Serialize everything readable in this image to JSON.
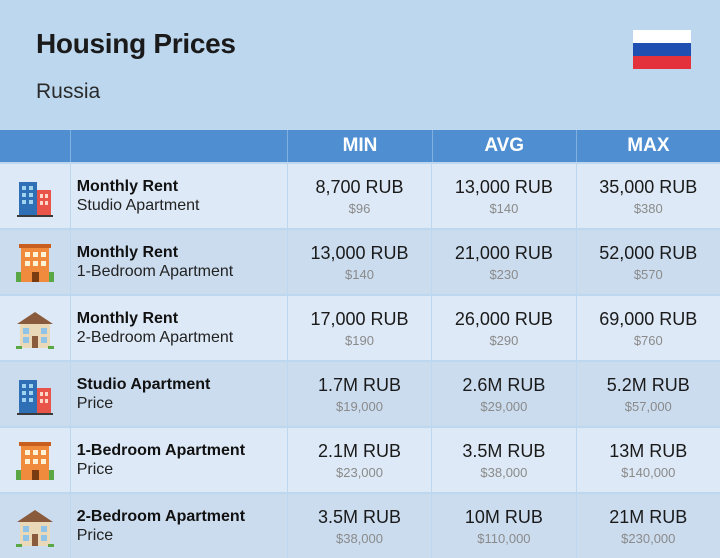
{
  "header": {
    "title": "Housing Prices",
    "subtitle": "Russia"
  },
  "columns": [
    "MIN",
    "AVG",
    "MAX"
  ],
  "rows": [
    {
      "icon": "blue-building-icon",
      "label1": "Monthly Rent",
      "label2": "Studio Apartment",
      "min": "8,700 RUB",
      "min_usd": "$96",
      "avg": "13,000 RUB",
      "avg_usd": "$140",
      "max": "35,000 RUB",
      "max_usd": "$380"
    },
    {
      "icon": "orange-building-icon",
      "label1": "Monthly Rent",
      "label2": "1-Bedroom Apartment",
      "min": "13,000 RUB",
      "min_usd": "$140",
      "avg": "21,000 RUB",
      "avg_usd": "$230",
      "max": "52,000 RUB",
      "max_usd": "$570"
    },
    {
      "icon": "house-icon",
      "label1": "Monthly Rent",
      "label2": "2-Bedroom Apartment",
      "min": "17,000 RUB",
      "min_usd": "$190",
      "avg": "26,000 RUB",
      "avg_usd": "$290",
      "max": "69,000 RUB",
      "max_usd": "$760"
    },
    {
      "icon": "blue-building-icon",
      "label1": "Studio Apartment",
      "label2": "Price",
      "min": "1.7M RUB",
      "min_usd": "$19,000",
      "avg": "2.6M RUB",
      "avg_usd": "$29,000",
      "max": "5.2M RUB",
      "max_usd": "$57,000"
    },
    {
      "icon": "orange-building-icon",
      "label1": "1-Bedroom Apartment",
      "label2": "Price",
      "min": "2.1M RUB",
      "min_usd": "$23,000",
      "avg": "3.5M RUB",
      "avg_usd": "$38,000",
      "max": "13M RUB",
      "max_usd": "$140,000"
    },
    {
      "icon": "house-icon",
      "label1": "2-Bedroom Apartment",
      "label2": "Price",
      "min": "3.5M RUB",
      "min_usd": "$38,000",
      "avg": "10M RUB",
      "avg_usd": "$110,000",
      "max": "21M RUB",
      "max_usd": "$230,000"
    }
  ],
  "colors": {
    "background": "#bcd7ee",
    "header_bar": "#4f8fd1",
    "flag_white": "#ffffff",
    "flag_blue": "#1f4fb0",
    "flag_red": "#e3323b"
  }
}
